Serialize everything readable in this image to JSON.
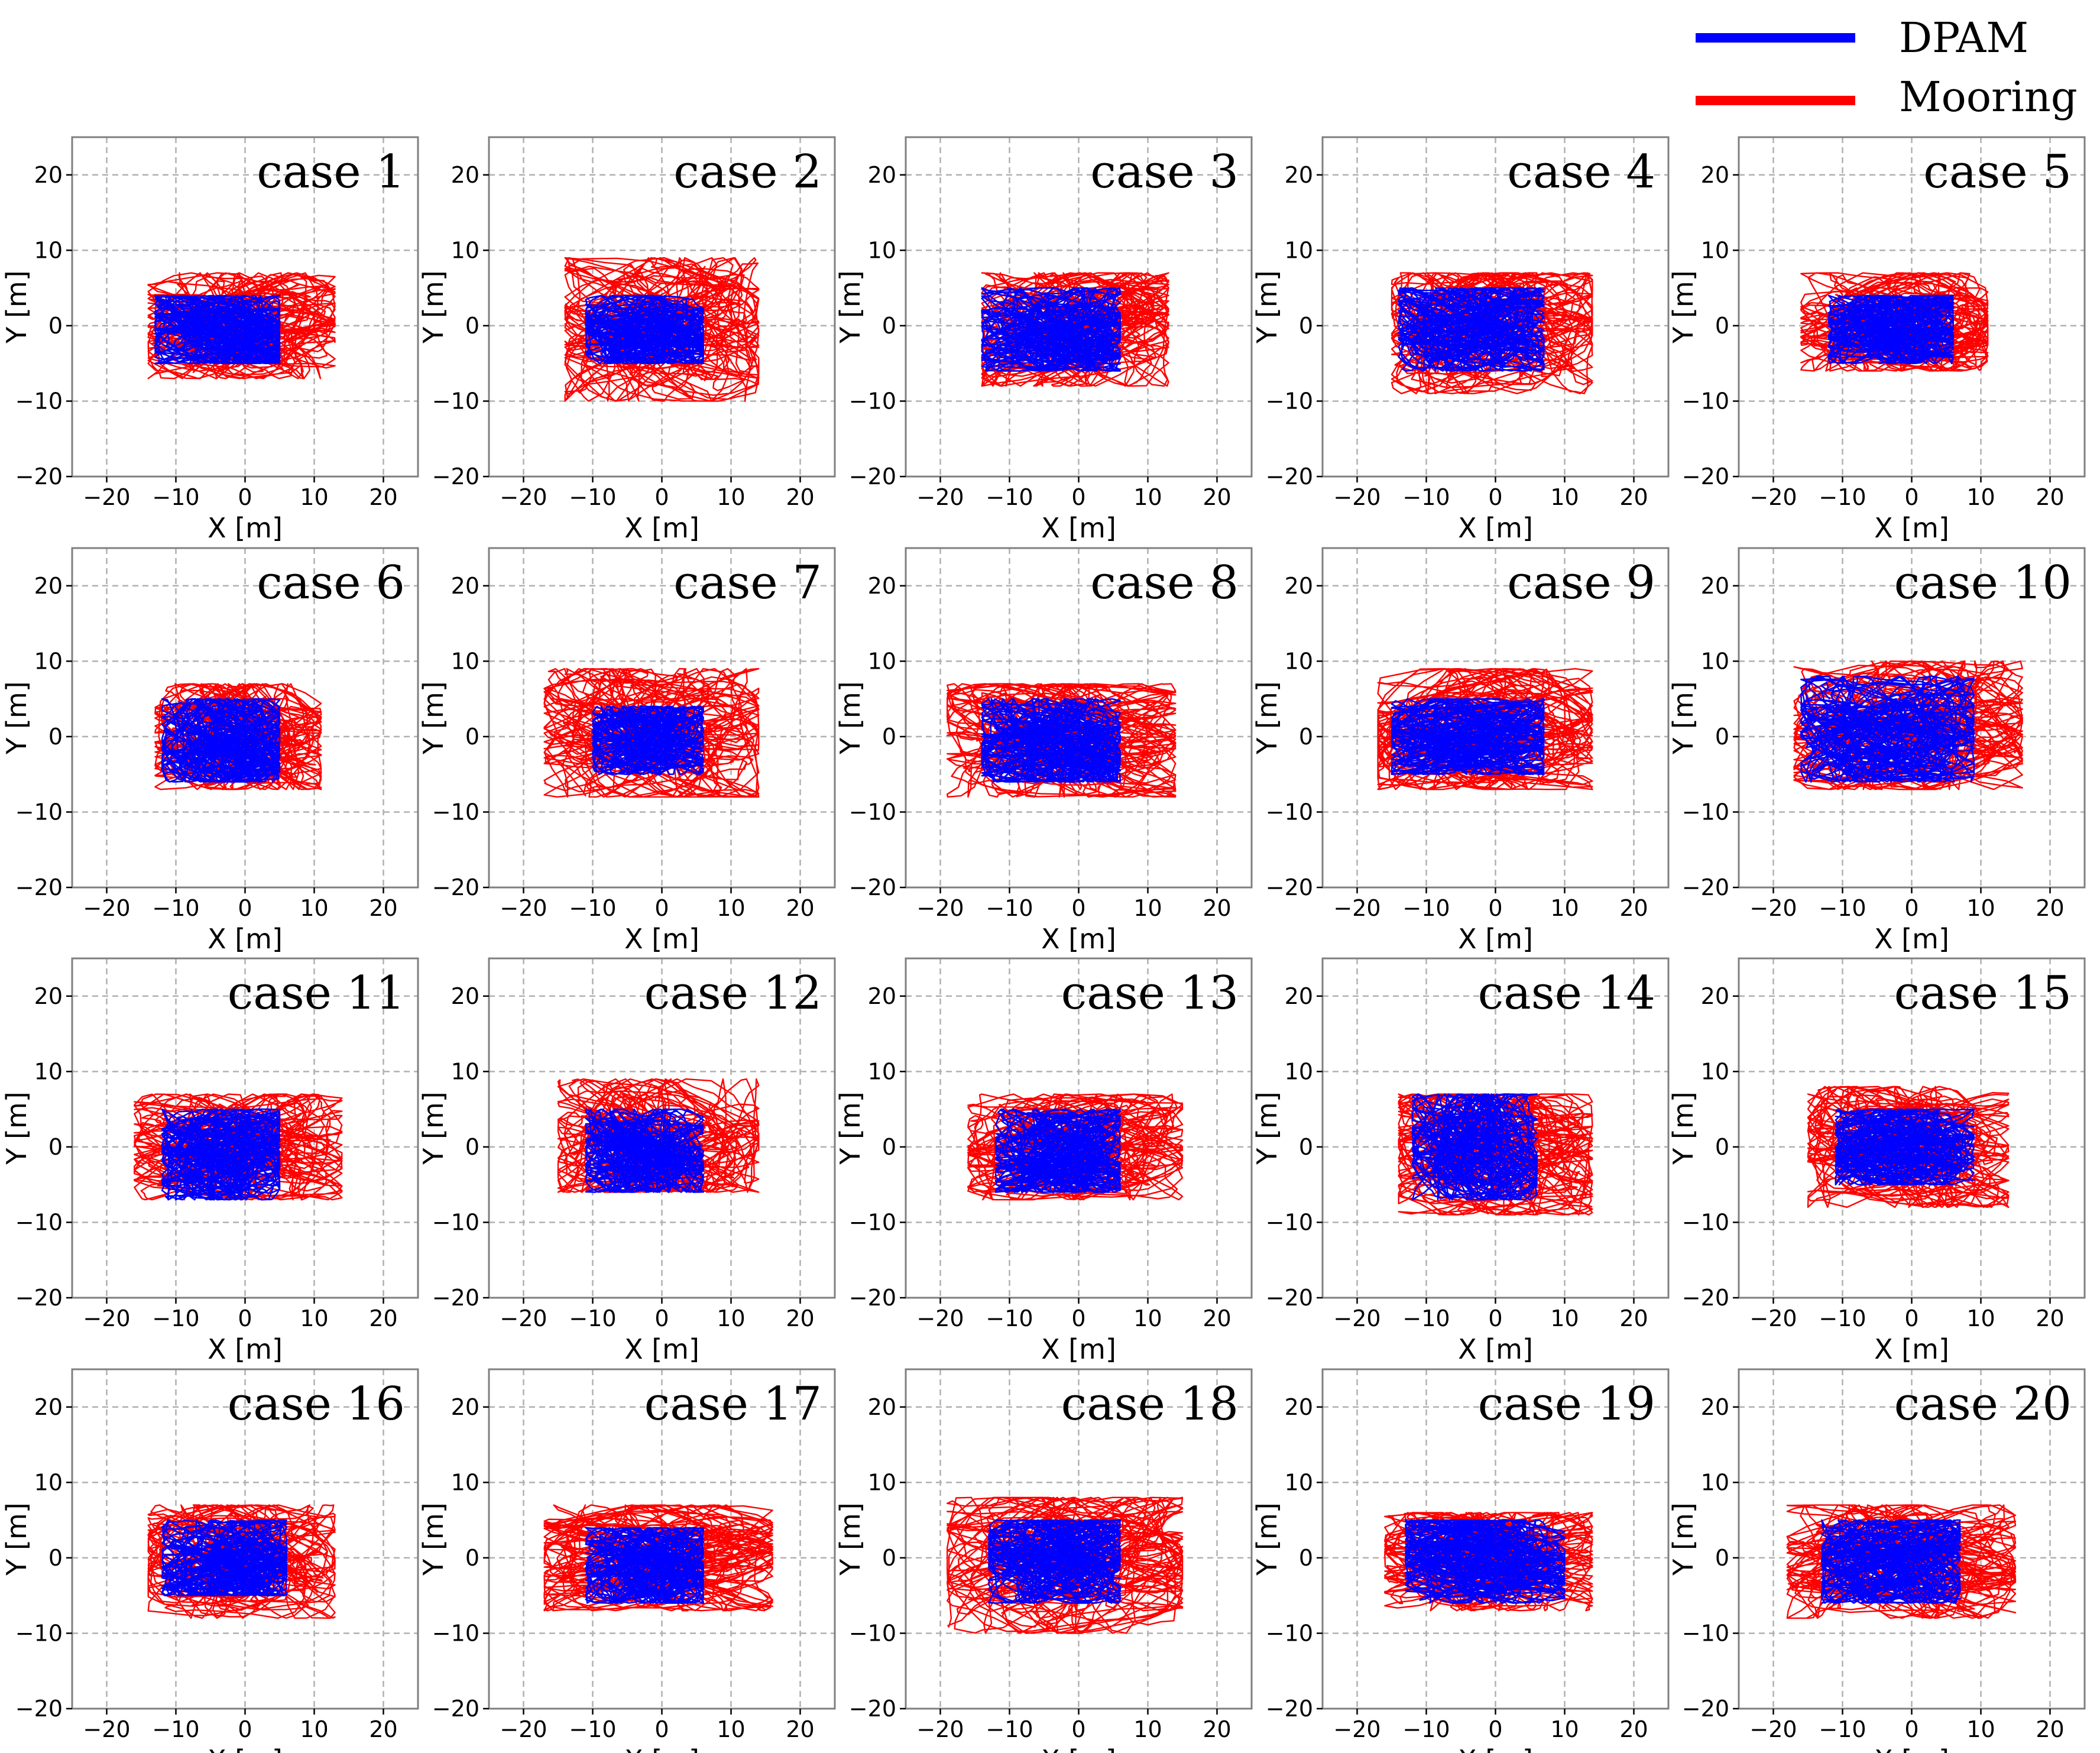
{
  "figure": {
    "legend": [
      {
        "name": "DPAM",
        "color": "#0000ff"
      },
      {
        "name": "Mooring",
        "color": "#ff0000"
      }
    ],
    "xlabel": "X [m]",
    "ylabel": "Y [m]",
    "xticks": [
      -20,
      -10,
      0,
      10,
      20
    ],
    "yticks": [
      -20,
      -10,
      0,
      10,
      20
    ]
  },
  "chart_data": [
    {
      "type": "line",
      "title": "case 1",
      "xlabel": "X [m]",
      "ylabel": "Y [m]",
      "xlim": [
        -25,
        25
      ],
      "ylim": [
        -20,
        25
      ],
      "grid": true,
      "series": [
        {
          "name": "DPAM",
          "color": "#0000ff",
          "center": [
            -2,
            -1
          ],
          "extent": [
            [
              -13,
              5
            ],
            [
              -5,
              4
            ]
          ]
        },
        {
          "name": "Mooring",
          "color": "#ff0000",
          "center": [
            -1,
            0
          ],
          "extent": [
            [
              -14,
              13
            ],
            [
              -7,
              7
            ]
          ]
        }
      ]
    },
    {
      "type": "line",
      "title": "case 2",
      "xlabel": "X [m]",
      "ylabel": "Y [m]",
      "xlim": [
        -25,
        25
      ],
      "ylim": [
        -20,
        25
      ],
      "grid": true,
      "series": [
        {
          "name": "DPAM",
          "color": "#0000ff",
          "center": [
            -2,
            -1
          ],
          "extent": [
            [
              -11,
              6
            ],
            [
              -5,
              4
            ]
          ]
        },
        {
          "name": "Mooring",
          "color": "#ff0000",
          "center": [
            -1,
            0
          ],
          "extent": [
            [
              -14,
              14
            ],
            [
              -10,
              9
            ]
          ]
        }
      ]
    },
    {
      "type": "line",
      "title": "case 3",
      "xlabel": "X [m]",
      "ylabel": "Y [m]",
      "xlim": [
        -25,
        25
      ],
      "ylim": [
        -20,
        25
      ],
      "grid": true,
      "series": [
        {
          "name": "DPAM",
          "color": "#0000ff",
          "center": [
            -3,
            -1
          ],
          "extent": [
            [
              -14,
              6
            ],
            [
              -6,
              5
            ]
          ]
        },
        {
          "name": "Mooring",
          "color": "#ff0000",
          "center": [
            -1,
            0
          ],
          "extent": [
            [
              -14,
              13
            ],
            [
              -8,
              7
            ]
          ]
        }
      ]
    },
    {
      "type": "line",
      "title": "case 4",
      "xlabel": "X [m]",
      "ylabel": "Y [m]",
      "xlim": [
        -25,
        25
      ],
      "ylim": [
        -20,
        25
      ],
      "grid": true,
      "series": [
        {
          "name": "DPAM",
          "color": "#0000ff",
          "center": [
            -3,
            0
          ],
          "extent": [
            [
              -14,
              7
            ],
            [
              -6,
              5
            ]
          ]
        },
        {
          "name": "Mooring",
          "color": "#ff0000",
          "center": [
            -1,
            0
          ],
          "extent": [
            [
              -15,
              14
            ],
            [
              -9,
              7
            ]
          ]
        }
      ]
    },
    {
      "type": "line",
      "title": "case 5",
      "xlabel": "X [m]",
      "ylabel": "Y [m]",
      "xlim": [
        -25,
        25
      ],
      "ylim": [
        -20,
        25
      ],
      "grid": true,
      "series": [
        {
          "name": "DPAM",
          "color": "#0000ff",
          "center": [
            -2,
            0
          ],
          "extent": [
            [
              -12,
              6
            ],
            [
              -5,
              4
            ]
          ]
        },
        {
          "name": "Mooring",
          "color": "#ff0000",
          "center": [
            -1,
            0
          ],
          "extent": [
            [
              -16,
              11
            ],
            [
              -6,
              7
            ]
          ]
        }
      ]
    },
    {
      "type": "line",
      "title": "case 6",
      "xlabel": "X [m]",
      "ylabel": "Y [m]",
      "xlim": [
        -25,
        25
      ],
      "ylim": [
        -20,
        25
      ],
      "grid": true,
      "series": [
        {
          "name": "DPAM",
          "color": "#0000ff",
          "center": [
            -2,
            -1
          ],
          "extent": [
            [
              -12,
              5
            ],
            [
              -6,
              5
            ]
          ]
        },
        {
          "name": "Mooring",
          "color": "#ff0000",
          "center": [
            -1,
            0
          ],
          "extent": [
            [
              -13,
              11
            ],
            [
              -7,
              7
            ]
          ]
        }
      ]
    },
    {
      "type": "line",
      "title": "case 7",
      "xlabel": "X [m]",
      "ylabel": "Y [m]",
      "xlim": [
        -25,
        25
      ],
      "ylim": [
        -20,
        25
      ],
      "grid": true,
      "series": [
        {
          "name": "DPAM",
          "color": "#0000ff",
          "center": [
            -2,
            0
          ],
          "extent": [
            [
              -10,
              6
            ],
            [
              -5,
              4
            ]
          ]
        },
        {
          "name": "Mooring",
          "color": "#ff0000",
          "center": [
            -1,
            0
          ],
          "extent": [
            [
              -17,
              14
            ],
            [
              -8,
              9
            ]
          ]
        }
      ]
    },
    {
      "type": "line",
      "title": "case 8",
      "xlabel": "X [m]",
      "ylabel": "Y [m]",
      "xlim": [
        -25,
        25
      ],
      "ylim": [
        -20,
        25
      ],
      "grid": true,
      "series": [
        {
          "name": "DPAM",
          "color": "#0000ff",
          "center": [
            -3,
            -1
          ],
          "extent": [
            [
              -14,
              6
            ],
            [
              -6,
              5
            ]
          ]
        },
        {
          "name": "Mooring",
          "color": "#ff0000",
          "center": [
            -1,
            0
          ],
          "extent": [
            [
              -19,
              14
            ],
            [
              -8,
              7
            ]
          ]
        }
      ]
    },
    {
      "type": "line",
      "title": "case 9",
      "xlabel": "X [m]",
      "ylabel": "Y [m]",
      "xlim": [
        -25,
        25
      ],
      "ylim": [
        -20,
        25
      ],
      "grid": true,
      "series": [
        {
          "name": "DPAM",
          "color": "#0000ff",
          "center": [
            -3,
            0
          ],
          "extent": [
            [
              -15,
              7
            ],
            [
              -5,
              5
            ]
          ]
        },
        {
          "name": "Mooring",
          "color": "#ff0000",
          "center": [
            -1,
            0
          ],
          "extent": [
            [
              -17,
              14
            ],
            [
              -7,
              9
            ]
          ]
        }
      ]
    },
    {
      "type": "line",
      "title": "case 10",
      "xlabel": "X [m]",
      "ylabel": "Y [m]",
      "xlim": [
        -25,
        25
      ],
      "ylim": [
        -20,
        25
      ],
      "grid": true,
      "series": [
        {
          "name": "DPAM",
          "color": "#0000ff",
          "center": [
            -3,
            0
          ],
          "extent": [
            [
              -16,
              9
            ],
            [
              -6,
              8
            ]
          ]
        },
        {
          "name": "Mooring",
          "color": "#ff0000",
          "center": [
            -1,
            1
          ],
          "extent": [
            [
              -17,
              16
            ],
            [
              -7,
              10
            ]
          ]
        }
      ]
    },
    {
      "type": "line",
      "title": "case 11",
      "xlabel": "X [m]",
      "ylabel": "Y [m]",
      "xlim": [
        -25,
        25
      ],
      "ylim": [
        -20,
        25
      ],
      "grid": true,
      "series": [
        {
          "name": "DPAM",
          "color": "#0000ff",
          "center": [
            -3,
            -1
          ],
          "extent": [
            [
              -12,
              5
            ],
            [
              -7,
              5
            ]
          ]
        },
        {
          "name": "Mooring",
          "color": "#ff0000",
          "center": [
            -1,
            0
          ],
          "extent": [
            [
              -16,
              14
            ],
            [
              -7,
              7
            ]
          ]
        }
      ]
    },
    {
      "type": "line",
      "title": "case 12",
      "xlabel": "X [m]",
      "ylabel": "Y [m]",
      "xlim": [
        -25,
        25
      ],
      "ylim": [
        -20,
        25
      ],
      "grid": true,
      "series": [
        {
          "name": "DPAM",
          "color": "#0000ff",
          "center": [
            -2,
            -1
          ],
          "extent": [
            [
              -11,
              6
            ],
            [
              -6,
              5
            ]
          ]
        },
        {
          "name": "Mooring",
          "color": "#ff0000",
          "center": [
            -1,
            0
          ],
          "extent": [
            [
              -15,
              14
            ],
            [
              -6,
              9
            ]
          ]
        }
      ]
    },
    {
      "type": "line",
      "title": "case 13",
      "xlabel": "X [m]",
      "ylabel": "Y [m]",
      "xlim": [
        -25,
        25
      ],
      "ylim": [
        -20,
        25
      ],
      "grid": true,
      "series": [
        {
          "name": "DPAM",
          "color": "#0000ff",
          "center": [
            -2,
            -1
          ],
          "extent": [
            [
              -12,
              6
            ],
            [
              -6,
              5
            ]
          ]
        },
        {
          "name": "Mooring",
          "color": "#ff0000",
          "center": [
            -1,
            0
          ],
          "extent": [
            [
              -16,
              15
            ],
            [
              -7,
              7
            ]
          ]
        }
      ]
    },
    {
      "type": "line",
      "title": "case 14",
      "xlabel": "X [m]",
      "ylabel": "Y [m]",
      "xlim": [
        -25,
        25
      ],
      "ylim": [
        -20,
        25
      ],
      "grid": true,
      "series": [
        {
          "name": "DPAM",
          "color": "#0000ff",
          "center": [
            -3,
            0
          ],
          "extent": [
            [
              -12,
              6
            ],
            [
              -7,
              7
            ]
          ]
        },
        {
          "name": "Mooring",
          "color": "#ff0000",
          "center": [
            -1,
            0
          ],
          "extent": [
            [
              -14,
              14
            ],
            [
              -9,
              7
            ]
          ]
        }
      ]
    },
    {
      "type": "line",
      "title": "case 15",
      "xlabel": "X [m]",
      "ylabel": "Y [m]",
      "xlim": [
        -25,
        25
      ],
      "ylim": [
        -20,
        25
      ],
      "grid": true,
      "series": [
        {
          "name": "DPAM",
          "color": "#0000ff",
          "center": [
            -2,
            0
          ],
          "extent": [
            [
              -11,
              9
            ],
            [
              -5,
              5
            ]
          ]
        },
        {
          "name": "Mooring",
          "color": "#ff0000",
          "center": [
            -1,
            0
          ],
          "extent": [
            [
              -15,
              14
            ],
            [
              -8,
              8
            ]
          ]
        }
      ]
    },
    {
      "type": "line",
      "title": "case 16",
      "xlabel": "X [m]",
      "ylabel": "Y [m]",
      "xlim": [
        -25,
        25
      ],
      "ylim": [
        -20,
        25
      ],
      "grid": true,
      "series": [
        {
          "name": "DPAM",
          "color": "#0000ff",
          "center": [
            -2,
            -1
          ],
          "extent": [
            [
              -12,
              6
            ],
            [
              -5,
              5
            ]
          ]
        },
        {
          "name": "Mooring",
          "color": "#ff0000",
          "center": [
            -1,
            0
          ],
          "extent": [
            [
              -14,
              13
            ],
            [
              -8,
              7
            ]
          ]
        }
      ]
    },
    {
      "type": "line",
      "title": "case 17",
      "xlabel": "X [m]",
      "ylabel": "Y [m]",
      "xlim": [
        -25,
        25
      ],
      "ylim": [
        -20,
        25
      ],
      "grid": true,
      "series": [
        {
          "name": "DPAM",
          "color": "#0000ff",
          "center": [
            -2,
            -1
          ],
          "extent": [
            [
              -11,
              6
            ],
            [
              -6,
              4
            ]
          ]
        },
        {
          "name": "Mooring",
          "color": "#ff0000",
          "center": [
            -1,
            0
          ],
          "extent": [
            [
              -17,
              16
            ],
            [
              -7,
              7
            ]
          ]
        }
      ]
    },
    {
      "type": "line",
      "title": "case 18",
      "xlabel": "X [m]",
      "ylabel": "Y [m]",
      "xlim": [
        -25,
        25
      ],
      "ylim": [
        -20,
        25
      ],
      "grid": true,
      "series": [
        {
          "name": "DPAM",
          "color": "#0000ff",
          "center": [
            -3,
            0
          ],
          "extent": [
            [
              -13,
              6
            ],
            [
              -6,
              5
            ]
          ]
        },
        {
          "name": "Mooring",
          "color": "#ff0000",
          "center": [
            -1,
            0
          ],
          "extent": [
            [
              -19,
              15
            ],
            [
              -10,
              8
            ]
          ]
        }
      ]
    },
    {
      "type": "line",
      "title": "case 19",
      "xlabel": "X [m]",
      "ylabel": "Y [m]",
      "xlim": [
        -25,
        25
      ],
      "ylim": [
        -20,
        25
      ],
      "grid": true,
      "series": [
        {
          "name": "DPAM",
          "color": "#0000ff",
          "center": [
            -2,
            0
          ],
          "extent": [
            [
              -13,
              10
            ],
            [
              -6,
              5
            ]
          ]
        },
        {
          "name": "Mooring",
          "color": "#ff0000",
          "center": [
            -1,
            0
          ],
          "extent": [
            [
              -16,
              14
            ],
            [
              -7,
              6
            ]
          ]
        }
      ]
    },
    {
      "type": "line",
      "title": "case 20",
      "xlabel": "X [m]",
      "ylabel": "Y [m]",
      "xlim": [
        -25,
        25
      ],
      "ylim": [
        -20,
        25
      ],
      "grid": true,
      "series": [
        {
          "name": "DPAM",
          "color": "#0000ff",
          "center": [
            -2,
            0
          ],
          "extent": [
            [
              -13,
              7
            ],
            [
              -6,
              5
            ]
          ]
        },
        {
          "name": "Mooring",
          "color": "#ff0000",
          "center": [
            -1,
            0
          ],
          "extent": [
            [
              -18,
              15
            ],
            [
              -8,
              7
            ]
          ]
        }
      ]
    }
  ]
}
